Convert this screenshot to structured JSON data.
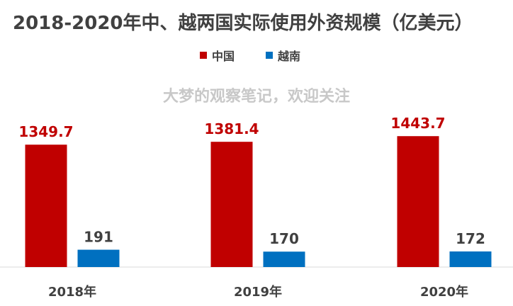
{
  "title": "2018-2020年中、越两国实际使用外资规模（亿美元）",
  "watermark": "大梦的观察笔记，欢迎关注",
  "colors": {
    "china": "#c00000",
    "vietnam": "#0070c0",
    "label": "#404040"
  },
  "chart_data": {
    "type": "bar",
    "title": "2018-2020年中、越两国实际使用外资规模（亿美元）",
    "categories": [
      "2018年",
      "2019年",
      "2020年"
    ],
    "series": [
      {
        "name": "中国",
        "color": "#c00000",
        "values": [
          1349.7,
          1381.4,
          1443.7
        ]
      },
      {
        "name": "越南",
        "color": "#0070c0",
        "values": [
          191,
          170,
          172
        ]
      }
    ],
    "xlabel": "",
    "ylabel": "",
    "ylim": [
      0,
      1700
    ],
    "grid": false,
    "legend": "top-center"
  }
}
